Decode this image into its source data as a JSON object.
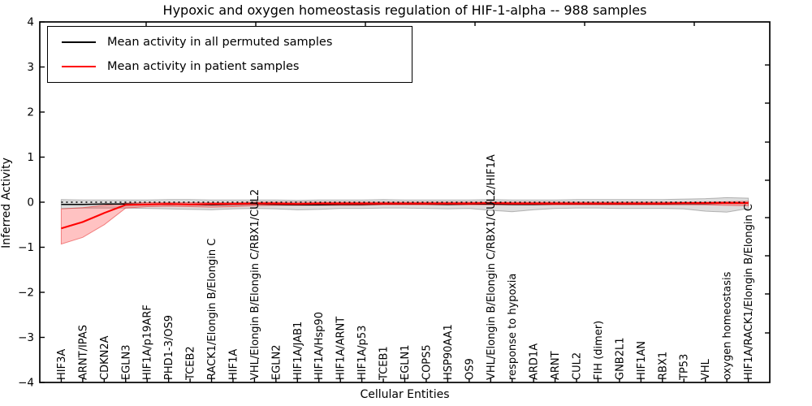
{
  "chart_data": {
    "type": "line",
    "title": "Hypoxic and oxygen homeostasis regulation of HIF-1-alpha -- 988 samples",
    "xlabel": "Cellular Entities",
    "ylabel": "Inferred Activity",
    "ylim": [
      -4,
      4
    ],
    "yticks": [
      4,
      3,
      2,
      1,
      0,
      -1,
      -2,
      -3,
      -4
    ],
    "grid": false,
    "legend_position": "upper left",
    "reference_line": {
      "y": 0,
      "style": "dotted",
      "color": "#000000"
    },
    "categories": [
      "HIF3A",
      "ARNT/IPAS",
      "CDKN2A",
      "EGLN3",
      "HIF1A/p19ARF",
      "PHD1-3/OS9",
      "TCEB2",
      "RACK1/Elongin B/Elongin C",
      "HIF1A",
      "VHL/Elongin B/Elongin C/RBX1/CUL2",
      "EGLN2",
      "HIF1A/JAB1",
      "HIF1A/Hsp90",
      "HIF1A/ARNT",
      "HIF1A/p53",
      "TCEB1",
      "EGLN1",
      "COPS5",
      "HSP90AA1",
      "OS9",
      "VHL/Elongin B/Elongin C/RBX1/CUL2/HIF1A",
      "response to hypoxia",
      "ARD1A",
      "ARNT",
      "CUL2",
      "FIH (dimer)",
      "GNB2L1",
      "HIF1AN",
      "RBX1",
      "TP53",
      "VHL",
      "oxygen homeostasis",
      "HIF1A/RACK1/Elongin B/Elongin C"
    ],
    "series": [
      {
        "name": "Mean activity in all permuted samples",
        "color": "#000000",
        "band_fill": "rgba(0,0,0,0.135)",
        "band_edge": "rgba(0,0,0,0.25)",
        "values": [
          -0.05,
          -0.05,
          -0.04,
          -0.04,
          -0.05,
          -0.05,
          -0.05,
          -0.06,
          -0.05,
          -0.04,
          -0.05,
          -0.06,
          -0.06,
          -0.05,
          -0.05,
          -0.04,
          -0.04,
          -0.04,
          -0.05,
          -0.04,
          -0.04,
          -0.05,
          -0.05,
          -0.04,
          -0.04,
          -0.04,
          -0.04,
          -0.04,
          -0.04,
          -0.03,
          -0.03,
          -0.02,
          -0.02
        ],
        "band_upper": [
          0.06,
          0.05,
          0.05,
          0.05,
          0.05,
          0.06,
          0.06,
          0.05,
          0.05,
          0.05,
          0.05,
          0.04,
          0.05,
          0.05,
          0.05,
          0.06,
          0.05,
          0.05,
          0.05,
          0.05,
          0.06,
          0.05,
          0.05,
          0.05,
          0.06,
          0.06,
          0.06,
          0.06,
          0.06,
          0.07,
          0.08,
          0.1,
          0.09
        ],
        "band_lower": [
          -0.14,
          -0.13,
          -0.13,
          -0.13,
          -0.14,
          -0.15,
          -0.16,
          -0.17,
          -0.15,
          -0.14,
          -0.15,
          -0.17,
          -0.16,
          -0.14,
          -0.14,
          -0.13,
          -0.13,
          -0.14,
          -0.15,
          -0.14,
          -0.18,
          -0.21,
          -0.17,
          -0.14,
          -0.13,
          -0.13,
          -0.14,
          -0.14,
          -0.14,
          -0.15,
          -0.2,
          -0.22,
          -0.14
        ]
      },
      {
        "name": "Mean activity in patient samples",
        "color": "#ff0000",
        "band_fill": "rgba(255,0,0,0.24)",
        "band_edge": "rgba(230,30,30,0.5)",
        "values": [
          -0.58,
          -0.44,
          -0.24,
          -0.06,
          -0.05,
          -0.04,
          -0.05,
          -0.04,
          -0.04,
          -0.03,
          -0.03,
          -0.04,
          -0.03,
          -0.03,
          -0.03,
          -0.03,
          -0.03,
          -0.03,
          -0.03,
          -0.03,
          -0.02,
          -0.03,
          -0.03,
          -0.03,
          -0.03,
          -0.03,
          -0.03,
          -0.03,
          -0.03,
          -0.02,
          -0.02,
          -0.02,
          -0.02
        ],
        "band_upper": [
          -0.15,
          -0.12,
          -0.07,
          -0.02,
          -0.01,
          -0.01,
          -0.01,
          -0.01,
          -0.01,
          0.0,
          0.0,
          0.0,
          0.0,
          0.0,
          0.0,
          0.0,
          0.0,
          0.0,
          0.0,
          0.0,
          0.0,
          0.0,
          0.0,
          0.0,
          0.0,
          0.0,
          0.0,
          0.0,
          0.0,
          0.0,
          0.0,
          0.01,
          0.02
        ],
        "band_lower": [
          -0.93,
          -0.78,
          -0.5,
          -0.13,
          -0.1,
          -0.09,
          -0.1,
          -0.11,
          -0.1,
          -0.08,
          -0.07,
          -0.07,
          -0.07,
          -0.07,
          -0.07,
          -0.06,
          -0.06,
          -0.06,
          -0.06,
          -0.06,
          -0.06,
          -0.06,
          -0.06,
          -0.06,
          -0.06,
          -0.06,
          -0.06,
          -0.06,
          -0.06,
          -0.06,
          -0.06,
          -0.07,
          -0.08
        ]
      }
    ]
  }
}
